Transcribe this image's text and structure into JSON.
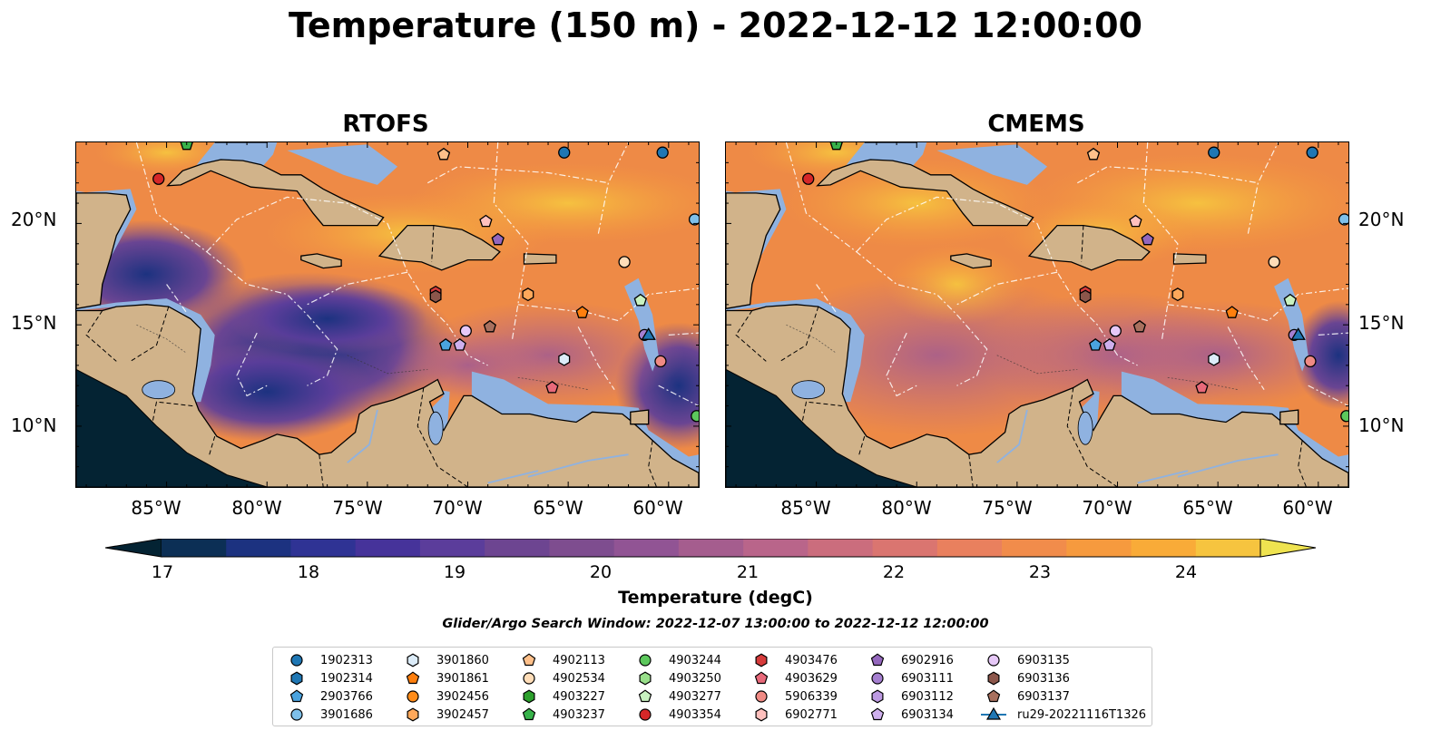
{
  "title": "Temperature (150 m) - 2022-12-12 12:00:00",
  "panels": [
    {
      "title": "RTOFS"
    },
    {
      "title": "CMEMS"
    }
  ],
  "axes": {
    "lat_labels": [
      "20°N",
      "15°N",
      "10°N"
    ],
    "lon_labels": [
      "85°W",
      "80°W",
      "75°W",
      "70°W",
      "65°W",
      "60°W"
    ],
    "lat_range": [
      7,
      24
    ],
    "lon_range": [
      -89.5,
      -58.5
    ]
  },
  "colorbar": {
    "label": "Temperature (degC)",
    "ticks": [
      "17",
      "18",
      "19",
      "20",
      "21",
      "22",
      "23",
      "24"
    ],
    "min": 17,
    "max": 24.5,
    "step": 0.5,
    "colors": [
      "#042333",
      "#0c2f55",
      "#1c3280",
      "#2f3394",
      "#46339a",
      "#5b3d9b",
      "#6d4591",
      "#7e4d8f",
      "#915494",
      "#a55d8e",
      "#b9658a",
      "#cb6d7d",
      "#da7570",
      "#e9805e",
      "#f18c4b",
      "#f69a3e",
      "#f9ab38",
      "#f6c43f",
      "#efe350"
    ],
    "extend": "both"
  },
  "search_window": "Glider/Argo Search Window: 2022-12-07 13:00:00 to 2022-12-12 12:00:00",
  "legend": [
    {
      "label": "1902313",
      "shape": "circle",
      "color": "#1f77b4"
    },
    {
      "label": "1902314",
      "shape": "hexagon",
      "color": "#1f77b4"
    },
    {
      "label": "2903766",
      "shape": "pentagon",
      "color": "#4aa3df"
    },
    {
      "label": "3901686",
      "shape": "circle",
      "color": "#7ec0ea"
    },
    {
      "label": "3901860",
      "shape": "hexagon",
      "color": "#dcecf9"
    },
    {
      "label": "3901861",
      "shape": "pentagon",
      "color": "#ff7f0e"
    },
    {
      "label": "3902456",
      "shape": "circle",
      "color": "#ff8c1a"
    },
    {
      "label": "3902457",
      "shape": "hexagon",
      "color": "#ffa85a"
    },
    {
      "label": "4902113",
      "shape": "pentagon",
      "color": "#ffc08a"
    },
    {
      "label": "4902534",
      "shape": "circle",
      "color": "#ffddb8"
    },
    {
      "label": "4903227",
      "shape": "hexagon",
      "color": "#2ca02c"
    },
    {
      "label": "4903237",
      "shape": "pentagon",
      "color": "#37b24a"
    },
    {
      "label": "4903244",
      "shape": "circle",
      "color": "#5cc85c"
    },
    {
      "label": "4903250",
      "shape": "hexagon",
      "color": "#98df8a"
    },
    {
      "label": "4903277",
      "shape": "pentagon",
      "color": "#c8f2c0"
    },
    {
      "label": "4903354",
      "shape": "circle",
      "color": "#d62728"
    },
    {
      "label": "4903476",
      "shape": "hexagon",
      "color": "#d63b3b"
    },
    {
      "label": "4903629",
      "shape": "pentagon",
      "color": "#e8697a"
    },
    {
      "label": "5906339",
      "shape": "circle",
      "color": "#f08a84"
    },
    {
      "label": "6902771",
      "shape": "hexagon",
      "color": "#ffc0bd"
    },
    {
      "label": "6902916",
      "shape": "pentagon",
      "color": "#9467bd"
    },
    {
      "label": "6903111",
      "shape": "circle",
      "color": "#a57fd0"
    },
    {
      "label": "6903112",
      "shape": "hexagon",
      "color": "#bd9ae2"
    },
    {
      "label": "6903134",
      "shape": "pentagon",
      "color": "#cfb0ee"
    },
    {
      "label": "6903135",
      "shape": "circle",
      "color": "#e6c8f7"
    },
    {
      "label": "6903136",
      "shape": "hexagon",
      "color": "#8c564b"
    },
    {
      "label": "6903137",
      "shape": "pentagon",
      "color": "#a8705e"
    },
    {
      "label": "ru29-20221116T1326",
      "shape": "triangle-line",
      "color": "#1f77b4"
    }
  ],
  "markers": [
    {
      "lon": -85.4,
      "lat": 22.2,
      "shape": "circle",
      "color": "#d62728"
    },
    {
      "lon": -84.0,
      "lat": 23.9,
      "shape": "pentagon",
      "color": "#37b24a"
    },
    {
      "lon": -71.2,
      "lat": 23.4,
      "shape": "pentagon",
      "color": "#ffc08a"
    },
    {
      "lon": -65.2,
      "lat": 23.5,
      "shape": "circle",
      "color": "#1f77b4"
    },
    {
      "lon": -60.3,
      "lat": 23.5,
      "shape": "circle",
      "color": "#1f77b4"
    },
    {
      "lon": -58.7,
      "lat": 20.2,
      "shape": "circle",
      "color": "#7ec0ea"
    },
    {
      "lon": -69.1,
      "lat": 20.1,
      "shape": "pentagon",
      "color": "#ffc0bd"
    },
    {
      "lon": -68.5,
      "lat": 19.2,
      "shape": "pentagon",
      "color": "#9467bd"
    },
    {
      "lon": -62.2,
      "lat": 18.1,
      "shape": "circle",
      "color": "#ffddb8"
    },
    {
      "lon": -71.6,
      "lat": 16.6,
      "shape": "hexagon",
      "color": "#d63b3b"
    },
    {
      "lon": -71.6,
      "lat": 16.4,
      "shape": "hexagon",
      "color": "#8c564b"
    },
    {
      "lon": -67.0,
      "lat": 16.5,
      "shape": "hexagon",
      "color": "#ffa85a"
    },
    {
      "lon": -61.4,
      "lat": 16.2,
      "shape": "pentagon",
      "color": "#c8f2c0"
    },
    {
      "lon": -64.3,
      "lat": 15.6,
      "shape": "pentagon",
      "color": "#ff7f0e"
    },
    {
      "lon": -68.9,
      "lat": 14.9,
      "shape": "pentagon",
      "color": "#a8705e"
    },
    {
      "lon": -70.1,
      "lat": 14.7,
      "shape": "circle",
      "color": "#e6c8f7"
    },
    {
      "lon": -71.1,
      "lat": 14.0,
      "shape": "pentagon",
      "color": "#4aa3df"
    },
    {
      "lon": -70.4,
      "lat": 14.0,
      "shape": "pentagon",
      "color": "#cfb0ee"
    },
    {
      "lon": -61.2,
      "lat": 14.5,
      "shape": "circle",
      "color": "#a57fd0"
    },
    {
      "lon": -61.0,
      "lat": 14.5,
      "shape": "triangle",
      "color": "#1f77b4"
    },
    {
      "lon": -65.2,
      "lat": 13.3,
      "shape": "hexagon",
      "color": "#dcecf9"
    },
    {
      "lon": -60.4,
      "lat": 13.2,
      "shape": "circle",
      "color": "#f08a84"
    },
    {
      "lon": -65.8,
      "lat": 11.9,
      "shape": "pentagon",
      "color": "#e8697a"
    },
    {
      "lon": -58.6,
      "lat": 10.5,
      "shape": "circle",
      "color": "#5cc85c"
    }
  ]
}
